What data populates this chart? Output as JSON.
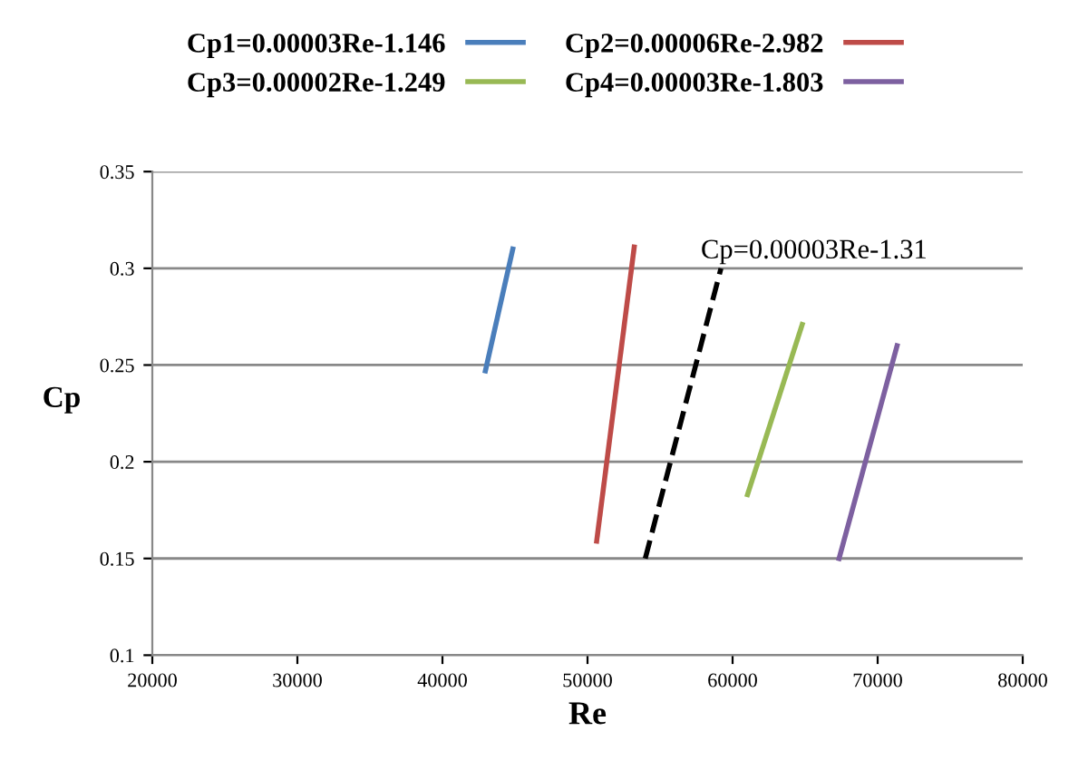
{
  "chart_data": {
    "type": "line",
    "xlabel": "Re",
    "ylabel": "Cp",
    "xlim": [
      20000,
      80000
    ],
    "xticks": [
      20000,
      30000,
      40000,
      50000,
      60000,
      70000,
      80000
    ],
    "ylim": [
      0.1,
      0.35
    ],
    "yticks": [
      0.1,
      0.15,
      0.2,
      0.25,
      0.3,
      0.35
    ],
    "grid": "y",
    "legend": "top",
    "marker": "none",
    "series": [
      {
        "name": "Cp1=0.00003Re-1.146",
        "color": "#4a7ebb",
        "x": [
          42960,
          44850
        ],
        "values": [
          0.247,
          0.31
        ]
      },
      {
        "name": "Cp2=0.00006Re-2.982",
        "color": "#be4b48",
        "x": [
          50630,
          53220
        ],
        "values": [
          0.159,
          0.311
        ]
      },
      {
        "name": "Cp3=0.00002Re-1.249",
        "color": "#98b954",
        "x": [
          61030,
          64800
        ],
        "values": [
          0.183,
          0.271
        ]
      },
      {
        "name": "Cp4=0.00003Re-1.803",
        "color": "#7d60a0",
        "x": [
          67340,
          71340
        ],
        "values": [
          0.15,
          0.26
        ]
      },
      {
        "name": "Cp=0.00003Re-1.31",
        "color": "#000000",
        "line_style": "dashed",
        "x": [
          53980,
          59200
        ],
        "values": [
          0.15,
          0.3
        ]
      }
    ]
  }
}
